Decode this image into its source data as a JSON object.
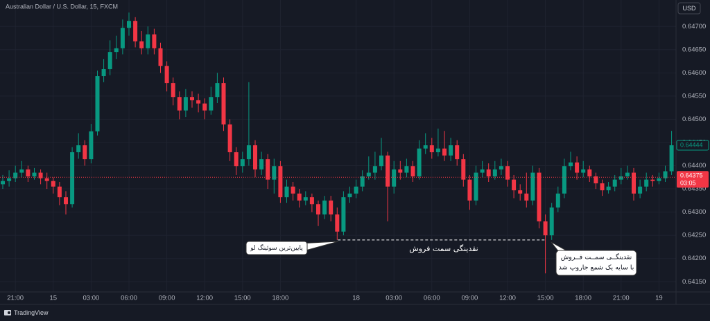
{
  "chart_data": {
    "type": "candlestick",
    "title": "Australian Dollar / U.S. Dollar, 15, FXCM",
    "currency": "USD",
    "branding": "TradingView",
    "up_color": "#089981",
    "down_color": "#f23645",
    "ylim": [
      0.64128,
      0.64757
    ],
    "yticks": [
      {
        "value": 0.6415,
        "label": "0.64150"
      },
      {
        "value": 0.642,
        "label": "0.64200"
      },
      {
        "value": 0.6425,
        "label": "0.64250"
      },
      {
        "value": 0.643,
        "label": "0.64300"
      },
      {
        "value": 0.6435,
        "label": "0.64350"
      },
      {
        "value": 0.644,
        "label": "0.64400"
      },
      {
        "value": 0.6445,
        "label": "0.64450"
      },
      {
        "value": 0.645,
        "label": "0.64500"
      },
      {
        "value": 0.6455,
        "label": "0.64550"
      },
      {
        "value": 0.646,
        "label": "0.64600"
      },
      {
        "value": 0.6465,
        "label": "0.64650"
      },
      {
        "value": 0.647,
        "label": "0.64700"
      }
    ],
    "grid": true,
    "categories": [
      null,
      null,
      "21:00",
      null,
      null,
      null,
      null,
      null,
      "15",
      null,
      null,
      null,
      null,
      null,
      "03:00",
      null,
      null,
      null,
      null,
      null,
      "06:00",
      null,
      null,
      null,
      null,
      null,
      "09:00",
      null,
      null,
      null,
      null,
      null,
      "12:00",
      null,
      null,
      null,
      null,
      null,
      "15:00",
      null,
      null,
      null,
      null,
      null,
      "18:00",
      null,
      null,
      null,
      null,
      null,
      null,
      null,
      null,
      null,
      null,
      null,
      "18",
      null,
      null,
      null,
      null,
      null,
      "03:00",
      null,
      null,
      null,
      null,
      null,
      "06:00",
      null,
      null,
      null,
      null,
      null,
      "09:00",
      null,
      null,
      null,
      null,
      null,
      "12:00",
      null,
      null,
      null,
      null,
      null,
      "15:00",
      null,
      null,
      null,
      null,
      null,
      "18:00",
      null,
      null,
      null,
      null,
      null,
      "21:00",
      null,
      null,
      null,
      null,
      null,
      "19",
      null,
      null
    ],
    "open": [
      0.6436,
      0.64367,
      0.64373,
      0.64385,
      0.64392,
      0.64377,
      0.64385,
      0.64373,
      0.64367,
      0.64355,
      0.64332,
      0.64317,
      0.64429,
      0.64444,
      0.64414,
      0.64474,
      0.64593,
      0.64608,
      0.64645,
      0.64653,
      0.64697,
      0.64712,
      0.64668,
      0.64653,
      0.64683,
      0.64653,
      0.64615,
      0.64578,
      0.64548,
      0.64519,
      0.64548,
      0.64541,
      0.64534,
      0.64519,
      0.64548,
      0.64578,
      0.64489,
      0.64429,
      0.64399,
      0.64414,
      0.64444,
      0.64392,
      0.64414,
      0.6437,
      0.64399,
      0.64332,
      0.64355,
      0.6434,
      0.64325,
      0.64332,
      0.64317,
      0.64295,
      0.64325,
      0.64295,
      0.64258,
      0.64332,
      0.6434,
      0.64355,
      0.64377,
      0.64385,
      0.64399,
      0.64422,
      0.64355,
      0.64392,
      0.64385,
      0.64399,
      0.64377,
      0.64437,
      0.64444,
      0.64429,
      0.64437,
      0.64422,
      0.64444,
      0.64414,
      0.6437,
      0.64325,
      0.64385,
      0.64392,
      0.64377,
      0.64392,
      0.64399,
      0.6437,
      0.64347,
      0.6434,
      0.64325,
      0.64385,
      0.6428,
      0.6425,
      0.6431,
      0.6434,
      0.64399,
      0.64407,
      0.64385,
      0.64392,
      0.64377,
      0.64362,
      0.64347,
      0.64355,
      0.6437,
      0.64377,
      0.64385,
      0.6434,
      0.64355,
      0.6437,
      0.64367,
      0.64373,
      0.64388
    ],
    "high": [
      0.6438,
      0.6439,
      0.644,
      0.6441,
      0.644,
      0.64395,
      0.64392,
      0.64385,
      0.64375,
      0.64365,
      0.64345,
      0.6444,
      0.6447,
      0.64455,
      0.6449,
      0.64605,
      0.6463,
      0.6467,
      0.6468,
      0.64715,
      0.6473,
      0.6472,
      0.6469,
      0.647,
      0.64695,
      0.64665,
      0.64625,
      0.6459,
      0.6456,
      0.64565,
      0.6456,
      0.64555,
      0.64545,
      0.6457,
      0.646,
      0.6459,
      0.645,
      0.6444,
      0.6443,
      0.6458,
      0.64455,
      0.6443,
      0.64425,
      0.64415,
      0.6441,
      0.6437,
      0.64365,
      0.6435,
      0.64345,
      0.6434,
      0.64325,
      0.64335,
      0.64335,
      0.6431,
      0.64345,
      0.64355,
      0.6437,
      0.6439,
      0.6442,
      0.6443,
      0.6446,
      0.6443,
      0.6441,
      0.6441,
      0.64415,
      0.6441,
      0.64455,
      0.6447,
      0.6446,
      0.6448,
      0.64475,
      0.6446,
      0.64455,
      0.64425,
      0.6438,
      0.644,
      0.6441,
      0.64405,
      0.6441,
      0.64415,
      0.6441,
      0.6438,
      0.6436,
      0.64385,
      0.644,
      0.64395,
      0.64295,
      0.6432,
      0.64355,
      0.64415,
      0.6443,
      0.6442,
      0.6441,
      0.644,
      0.64385,
      0.6437,
      0.64365,
      0.6438,
      0.64395,
      0.644,
      0.64395,
      0.6437,
      0.64385,
      0.6438,
      0.64385,
      0.644,
      0.64475
    ],
    "low": [
      0.6435,
      0.64355,
      0.64365,
      0.64375,
      0.64365,
      0.6437,
      0.6436,
      0.6435,
      0.6434,
      0.64315,
      0.64295,
      0.6431,
      0.64415,
      0.644,
      0.64405,
      0.64465,
      0.6458,
      0.64595,
      0.6463,
      0.6464,
      0.6468,
      0.64655,
      0.6464,
      0.6464,
      0.6464,
      0.646,
      0.6456,
      0.6453,
      0.645,
      0.64505,
      0.64525,
      0.64515,
      0.645,
      0.6451,
      0.64535,
      0.64475,
      0.6441,
      0.6438,
      0.64385,
      0.644,
      0.64375,
      0.6438,
      0.6435,
      0.6434,
      0.6432,
      0.6432,
      0.64325,
      0.6431,
      0.64315,
      0.643,
      0.6427,
      0.64285,
      0.6428,
      0.6424,
      0.6425,
      0.6432,
      0.6433,
      0.64345,
      0.6437,
      0.6437,
      0.6439,
      0.6428,
      0.6434,
      0.6437,
      0.64375,
      0.64365,
      0.6437,
      0.64425,
      0.64415,
      0.6442,
      0.6441,
      0.6441,
      0.644,
      0.64355,
      0.64305,
      0.64315,
      0.64375,
      0.64365,
      0.6437,
      0.6438,
      0.64355,
      0.6433,
      0.64325,
      0.6431,
      0.64315,
      0.64265,
      0.64168,
      0.6424,
      0.643,
      0.6433,
      0.6439,
      0.6437,
      0.64375,
      0.64365,
      0.6435,
      0.64335,
      0.6434,
      0.64345,
      0.6436,
      0.6437,
      0.64325,
      0.6433,
      0.64345,
      0.64355,
      0.6436,
      0.64365,
      0.6438
    ],
    "close": [
      0.64367,
      0.64373,
      0.64385,
      0.64392,
      0.64377,
      0.64385,
      0.64373,
      0.64367,
      0.64355,
      0.64332,
      0.64317,
      0.64429,
      0.64444,
      0.64414,
      0.64474,
      0.64593,
      0.64608,
      0.64645,
      0.64653,
      0.64697,
      0.64712,
      0.64668,
      0.64653,
      0.64683,
      0.64653,
      0.64615,
      0.64578,
      0.64548,
      0.64519,
      0.64548,
      0.64541,
      0.64534,
      0.64519,
      0.64548,
      0.64578,
      0.64489,
      0.64429,
      0.64399,
      0.64414,
      0.64444,
      0.64392,
      0.64414,
      0.6437,
      0.64399,
      0.64332,
      0.64355,
      0.6434,
      0.64325,
      0.64332,
      0.64317,
      0.64295,
      0.64325,
      0.64295,
      0.64258,
      0.64332,
      0.6434,
      0.64355,
      0.64377,
      0.64385,
      0.64399,
      0.64422,
      0.64355,
      0.64392,
      0.64385,
      0.64399,
      0.64377,
      0.64437,
      0.64444,
      0.64429,
      0.64437,
      0.64422,
      0.64444,
      0.64414,
      0.6437,
      0.64325,
      0.64385,
      0.64392,
      0.64377,
      0.64392,
      0.64399,
      0.6437,
      0.64347,
      0.6434,
      0.64325,
      0.64385,
      0.6428,
      0.6425,
      0.6431,
      0.6434,
      0.64399,
      0.64407,
      0.64385,
      0.64392,
      0.64377,
      0.64362,
      0.64347,
      0.64355,
      0.6437,
      0.64377,
      0.64385,
      0.6434,
      0.64355,
      0.6437,
      0.64367,
      0.64373,
      0.64388,
      0.64444
    ],
    "price_line": 0.64375,
    "countdown": "03:05",
    "price_marker": 0.64444,
    "liquidity_level": 0.6424,
    "annotations": {
      "swing_low": "پایین‌ترین سوئینگ لو",
      "liquidity": "نقدینگی سمت فروش",
      "sweep_line1": "نقدینگــی سمــت فــروش",
      "sweep_line2": "با سایه یک شمع جاروپ شد"
    }
  }
}
